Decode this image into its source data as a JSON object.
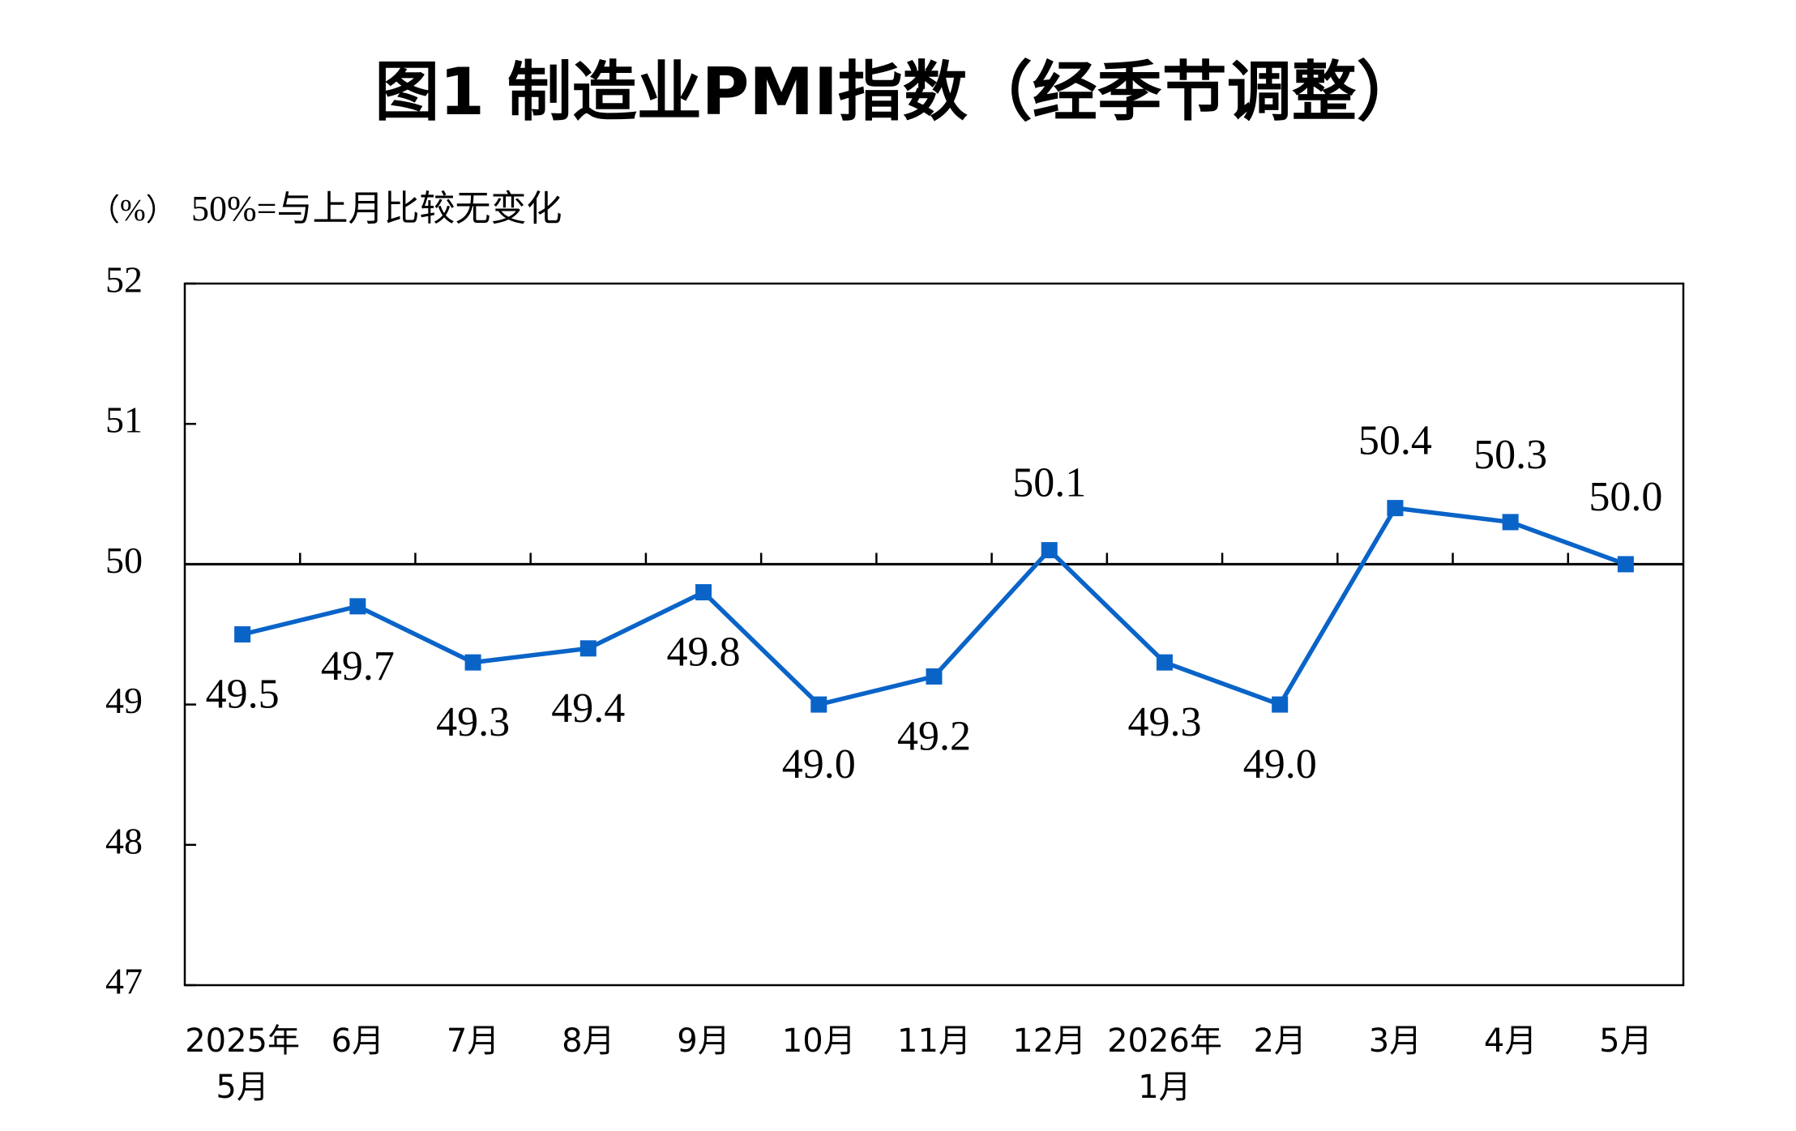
{
  "chart_data": {
    "type": "line",
    "title": "图1 制造业PMI指数（经季节调整）",
    "unit_label": "（%）",
    "note": "50%=与上月比较无变化",
    "categories": [
      [
        "2025年",
        "5月"
      ],
      [
        "6月"
      ],
      [
        "7月"
      ],
      [
        "8月"
      ],
      [
        "9月"
      ],
      [
        "10月"
      ],
      [
        "11月"
      ],
      [
        "12月"
      ],
      [
        "2026年",
        "1月"
      ],
      [
        "2月"
      ],
      [
        "3月"
      ],
      [
        "4月"
      ],
      [
        "5月"
      ]
    ],
    "series": [
      {
        "values": [
          49.5,
          49.7,
          49.3,
          49.4,
          49.8,
          49.0,
          49.2,
          50.1,
          49.3,
          49.0,
          50.4,
          50.3,
          50.0
        ]
      }
    ],
    "ylim": [
      47,
      52
    ],
    "yticks": [
      52,
      51,
      50,
      49,
      48,
      47
    ],
    "reference_line": 50,
    "grid": false,
    "colors": {
      "series": "#0a64c8",
      "axis": "#000000"
    }
  }
}
